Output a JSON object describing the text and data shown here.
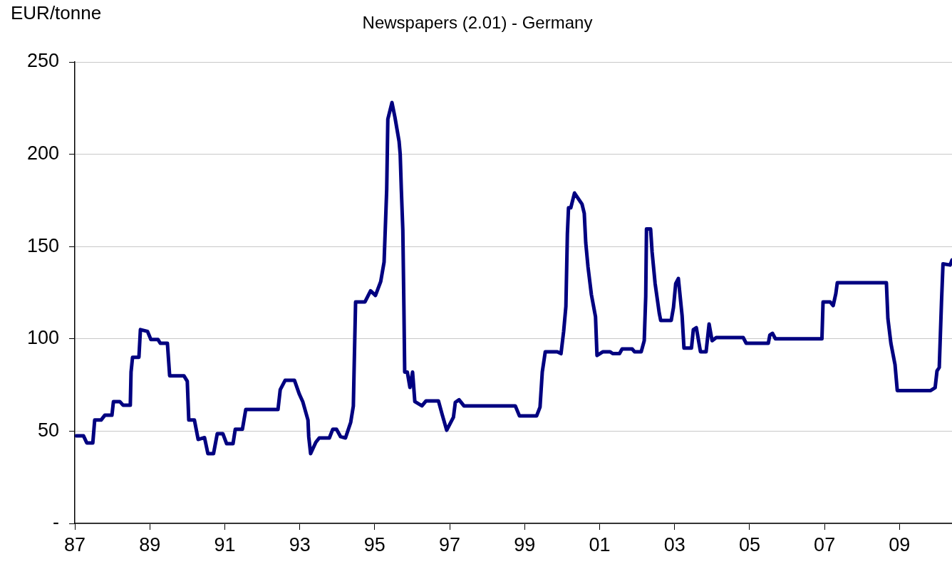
{
  "chart_data": {
    "type": "line",
    "title": "Newspapers (2.01) - Germany",
    "ylabel": "EUR/tonne",
    "x": [
      1987.04,
      1987.23,
      1987.32,
      1987.48,
      1987.53,
      1987.7,
      1987.8,
      1987.99,
      1988.03,
      1988.2,
      1988.29,
      1988.48,
      1988.5,
      1988.54,
      1988.71,
      1988.75,
      1988.94,
      1989.03,
      1989.22,
      1989.28,
      1989.47,
      1989.53,
      1989.91,
      1990.0,
      1990.04,
      1990.19,
      1990.29,
      1990.46,
      1990.55,
      1990.7,
      1990.8,
      1990.95,
      1991.05,
      1991.22,
      1991.28,
      1991.47,
      1991.56,
      1992.42,
      1992.48,
      1992.61,
      1992.86,
      1992.99,
      1993.08,
      1993.22,
      1993.24,
      1993.29,
      1993.43,
      1993.52,
      1993.79,
      1993.88,
      1993.98,
      1994.09,
      1994.22,
      1994.36,
      1994.43,
      1994.45,
      1994.49,
      1994.74,
      1994.89,
      1995.02,
      1995.16,
      1995.25,
      1995.29,
      1995.32,
      1995.35,
      1995.46,
      1995.54,
      1995.65,
      1995.68,
      1995.71,
      1995.75,
      1995.78,
      1995.8,
      1995.87,
      1995.94,
      1996.01,
      1996.07,
      1996.26,
      1996.37,
      1996.7,
      1996.8,
      1996.92,
      1997.1,
      1997.15,
      1997.25,
      1997.38,
      1998.75,
      1998.86,
      1999.32,
      1999.41,
      1999.47,
      1999.55,
      1999.87,
      1999.97,
      2000.04,
      2000.1,
      2000.14,
      2000.17,
      2000.23,
      2000.33,
      2000.53,
      2000.59,
      2000.63,
      2000.69,
      2000.78,
      2000.89,
      2000.93,
      2001.09,
      2001.28,
      2001.35,
      2001.53,
      2001.6,
      2001.87,
      2001.93,
      2002.11,
      2002.19,
      2002.23,
      2002.25,
      2002.36,
      2002.4,
      2002.48,
      2002.59,
      2002.63,
      2002.91,
      2002.97,
      2003.03,
      2003.1,
      2003.2,
      2003.25,
      2003.45,
      2003.5,
      2003.58,
      2003.69,
      2003.84,
      2003.92,
      2004.0,
      2004.11,
      2004.83,
      2004.91,
      2005.5,
      2005.54,
      2005.61,
      2005.69,
      2006.93,
      2006.96,
      2007.15,
      2007.23,
      2007.3,
      2007.34,
      2008.65,
      2008.69,
      2008.77,
      2008.88,
      2008.94,
      2009.83,
      2009.95,
      2010.0,
      2010.06,
      2010.12,
      2010.16,
      2010.35,
      2010.4
    ],
    "series": [
      {
        "color": "#000080",
        "values": [
          47.5,
          47.5,
          43.6,
          43.6,
          56,
          56,
          58.6,
          58.6,
          66,
          66,
          64,
          64,
          82,
          90,
          90,
          105,
          104,
          99.6,
          99.6,
          97.6,
          97.6,
          80,
          80,
          77,
          56,
          56,
          45.5,
          46.5,
          37.8,
          37.8,
          48.6,
          48.6,
          43.2,
          43.2,
          51,
          51,
          61.7,
          61.7,
          72.5,
          77.5,
          77.5,
          70,
          66,
          56,
          47,
          37.8,
          44,
          46.3,
          46.3,
          51,
          51,
          47,
          46.3,
          54.8,
          63.6,
          83,
          120,
          120,
          126,
          123.5,
          131,
          141.6,
          164,
          181,
          219,
          228,
          220,
          207,
          200,
          181,
          159,
          115,
          82,
          82,
          73.7,
          82,
          66,
          63.7,
          66.4,
          66.4,
          59,
          50.5,
          57.5,
          65.6,
          67,
          63.7,
          63.7,
          58.3,
          58.3,
          63,
          82,
          93,
          93,
          92,
          104,
          117.6,
          157,
          171,
          171,
          179,
          173,
          168,
          152,
          139,
          124,
          112,
          91,
          93,
          93,
          92,
          92,
          94.5,
          94.5,
          93,
          93,
          99,
          123,
          159.5,
          159.5,
          147,
          130,
          114,
          110,
          110,
          117,
          130,
          132.7,
          112.6,
          95,
          95,
          105,
          106,
          93,
          93,
          108,
          99,
          100.7,
          100.7,
          97.6,
          97.6,
          102,
          103,
          100,
          100,
          120,
          120,
          118,
          124.4,
          130.4,
          130.4,
          111,
          97.6,
          86,
          72,
          72,
          73.5,
          82.6,
          84.5,
          120,
          140.6,
          140,
          142.7
        ]
      }
    ],
    "xlim": [
      1987,
      2010.4
    ],
    "xticks": [
      {
        "value": 1987,
        "label": "87"
      },
      {
        "value": 1989,
        "label": "89"
      },
      {
        "value": 1991,
        "label": "91"
      },
      {
        "value": 1993,
        "label": "93"
      },
      {
        "value": 1995,
        "label": "95"
      },
      {
        "value": 1997,
        "label": "97"
      },
      {
        "value": 1999,
        "label": "99"
      },
      {
        "value": 2001,
        "label": "01"
      },
      {
        "value": 2003,
        "label": "03"
      },
      {
        "value": 2005,
        "label": "05"
      },
      {
        "value": 2007,
        "label": "07"
      },
      {
        "value": 2009,
        "label": "09"
      }
    ],
    "ylim": [
      0,
      250
    ],
    "yticks": [
      {
        "value": 0,
        "label": "-"
      },
      50,
      100,
      150,
      200,
      250
    ],
    "grid": "y",
    "legend": false,
    "marker": "none",
    "line_style": "solid"
  }
}
